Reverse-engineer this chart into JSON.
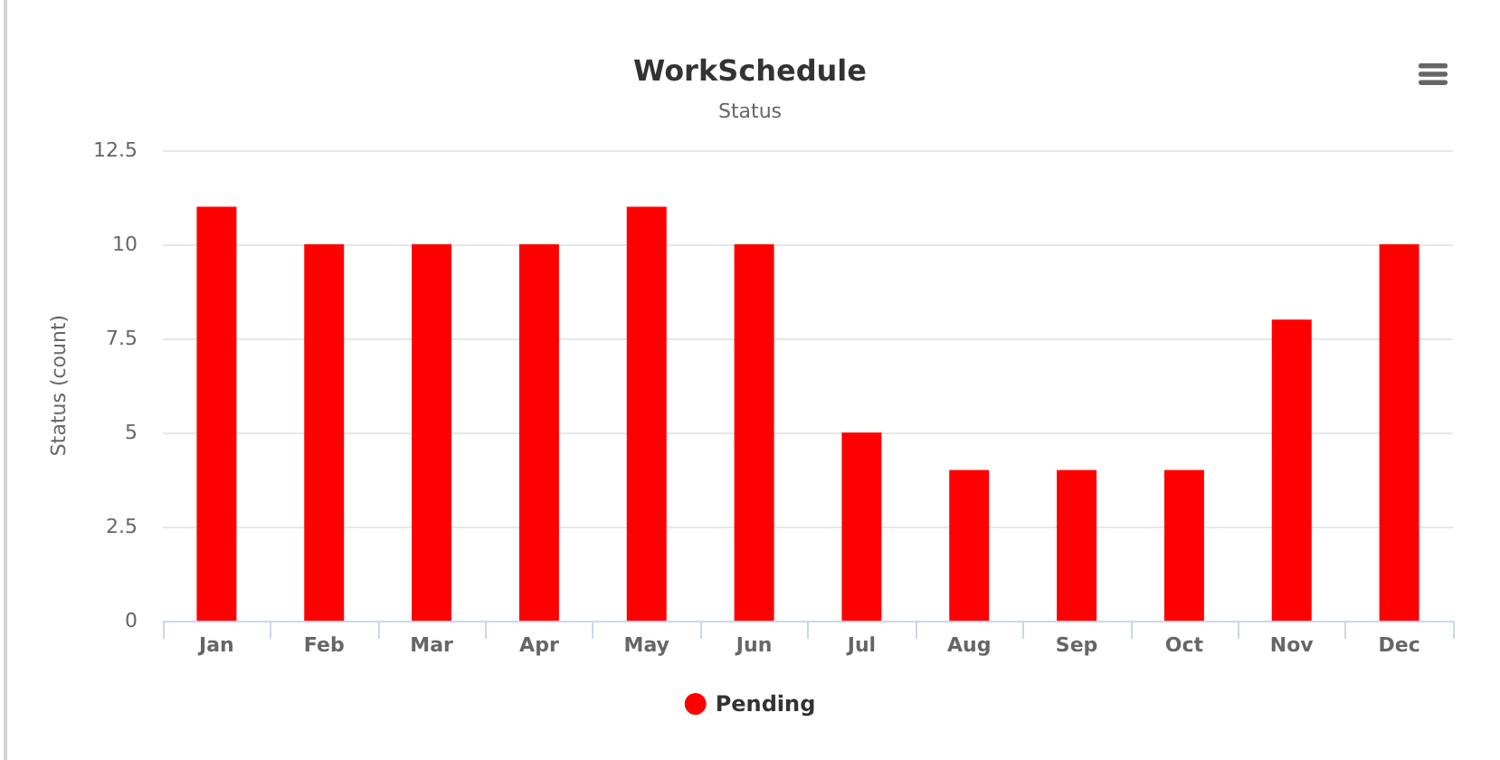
{
  "chart_data": {
    "type": "bar",
    "title": "WorkSchedule",
    "subtitle": "Status",
    "ylabel": "Status (count)",
    "categories": [
      "Jan",
      "Feb",
      "Mar",
      "Apr",
      "May",
      "Jun",
      "Jul",
      "Aug",
      "Sep",
      "Oct",
      "Nov",
      "Dec"
    ],
    "series": [
      {
        "name": "Pending",
        "color": "#ff0000",
        "values": [
          11,
          10,
          10,
          10,
          11,
          10,
          5,
          4,
          4,
          4,
          8,
          10
        ]
      }
    ],
    "ylim": [
      0,
      12.5
    ],
    "yticks": [
      0,
      2.5,
      5,
      7.5,
      10,
      12.5
    ],
    "grid": "y",
    "legend": "bottom"
  }
}
